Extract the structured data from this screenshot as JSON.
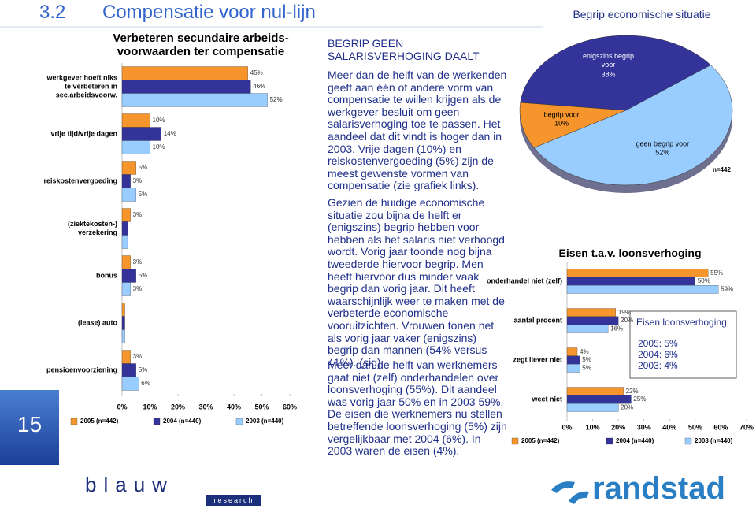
{
  "slide": {
    "section": "3.2",
    "title": "Compensatie voor nul-lijn",
    "page_number": "15",
    "text_heading": "BEGRIP GEEN SALARISVERHOGING DAALT",
    "paragraphs": [
      "Meer dan de helft van de werkenden geeft aan één of andere vorm van compensatie te willen krijgen als de werkgever besluit om geen salarisverhoging toe te passen. Het aandeel dat dit vindt is hoger dan in 2003. Vrije dagen (10%) en reiskostenvergoeding (5%) zijn de meest gewenste vormen van compensatie (zie grafiek links).",
      "Gezien de huidige economische situatie zou bijna de helft er (enigszins) begrip hebben voor hebben als het salaris niet verhoogd wordt. Vorig jaar toonde nog bijna tweederde hiervoor begrip. Men heeft hiervoor dus minder vaak begrip dan vorig jaar. Dit heeft waarschijnlijk weer te maken met de verbeterde economische vooruitzichten. Vrouwen tonen net als vorig jaar vaker (enigszins) begrip dan mannen (54% versus 41%). (sig).",
      "Meer dan de helft van werknemers gaat niet (zelf) onderhandelen over loonsverhoging (55%). Dit aandeel was vorig jaar 50% en in 2003 59%. De eisen die werknemers nu stellen betreffende loonsverhoging (5%) zijn vergelijkbaar met 2004 (6%). In 2003 waren de eisen (4%)."
    ],
    "logo_left": "blauw",
    "logo_left_sub": "research",
    "logo_right": "randstad"
  },
  "chart_data": [
    {
      "type": "bar",
      "title": "Verbeteren secundaire arbeids-voorwaarden ter compensatie",
      "categories": [
        "werkgever hoeft niks te verbeteren in sec.arbeidsvoorw.",
        "vrije tijd/vrije dagen",
        "reiskostenvergoeding",
        "(ziektekosten-) verzekering",
        "bonus",
        "(lease) auto",
        "pensioenvoorziening"
      ],
      "series": [
        {
          "name": "2005 (n=442)",
          "color": "#f5952b",
          "values": [
            45,
            10,
            5,
            3,
            3,
            1,
            3
          ],
          "value_labels": [
            "45%",
            "10%",
            "5%",
            "3%",
            "3%",
            null,
            "3%"
          ]
        },
        {
          "name": "2004 (n=440)",
          "color": "#333399",
          "values": [
            46,
            14,
            3,
            2,
            5,
            1,
            5
          ],
          "value_labels": [
            "46%",
            "14%",
            "3%",
            null,
            "5%",
            null,
            "5%"
          ]
        },
        {
          "name": "2003 (n=440)",
          "color": "#99ccff",
          "values": [
            52,
            10,
            5,
            2,
            3,
            1,
            6
          ],
          "value_labels": [
            "52%",
            "10%",
            "5%",
            null,
            "3%",
            null,
            "6%"
          ]
        }
      ],
      "xlim": [
        0,
        60
      ],
      "xticks": [
        {
          "value": 0,
          "label": "0%"
        },
        {
          "value": 10,
          "label": "10%"
        },
        {
          "value": 20,
          "label": "20%"
        },
        {
          "value": 30,
          "label": "30%"
        },
        {
          "value": 40,
          "label": "40%"
        },
        {
          "value": 50,
          "label": "50%"
        },
        {
          "value": 60,
          "label": "60%"
        }
      ]
    },
    {
      "type": "pie",
      "title": "Begrip economische situatie",
      "categories": [
        "begrip voor",
        "enigszins begrip voor",
        "geen begrip voor"
      ],
      "values": [
        10,
        38,
        52
      ],
      "value_labels": [
        "10%",
        "38%",
        "52%"
      ],
      "colors": [
        "#f5952b",
        "#333399",
        "#99ccff"
      ],
      "annotation": "n=442"
    },
    {
      "type": "bar",
      "title": "Eisen t.a.v. loonsverhoging",
      "categories": [
        "onderhandel niet (zelf)",
        "aantal procent",
        "zegt liever niet",
        "weet niet"
      ],
      "series": [
        {
          "name": "2005 (n=442)",
          "color": "#f5952b",
          "values": [
            55,
            19,
            4,
            22
          ],
          "value_labels": [
            "55%",
            "19%",
            "4%",
            "22%"
          ]
        },
        {
          "name": "2004 (n=440)",
          "color": "#333399",
          "values": [
            50,
            20,
            5,
            25
          ],
          "value_labels": [
            "50%",
            "20%",
            "5%",
            "25%"
          ]
        },
        {
          "name": "2003 (n=440)",
          "color": "#99ccff",
          "values": [
            59,
            16,
            5,
            20
          ],
          "value_labels": [
            "59%",
            "16%",
            "5%",
            "20%"
          ]
        }
      ],
      "xlim": [
        0,
        70
      ],
      "xticks": [
        {
          "value": 0,
          "label": "0%"
        },
        {
          "value": 10,
          "label": "10%"
        },
        {
          "value": 20,
          "label": "20%"
        },
        {
          "value": 30,
          "label": "30%"
        },
        {
          "value": 40,
          "label": "40%"
        },
        {
          "value": 50,
          "label": "50%"
        },
        {
          "value": 60,
          "label": "60%"
        },
        {
          "value": 70,
          "label": "70%"
        }
      ],
      "annotations": [
        "Eisen loonsverhoging:",
        "2005: 5%",
        "2004: 6%",
        "2003: 4%"
      ]
    }
  ]
}
